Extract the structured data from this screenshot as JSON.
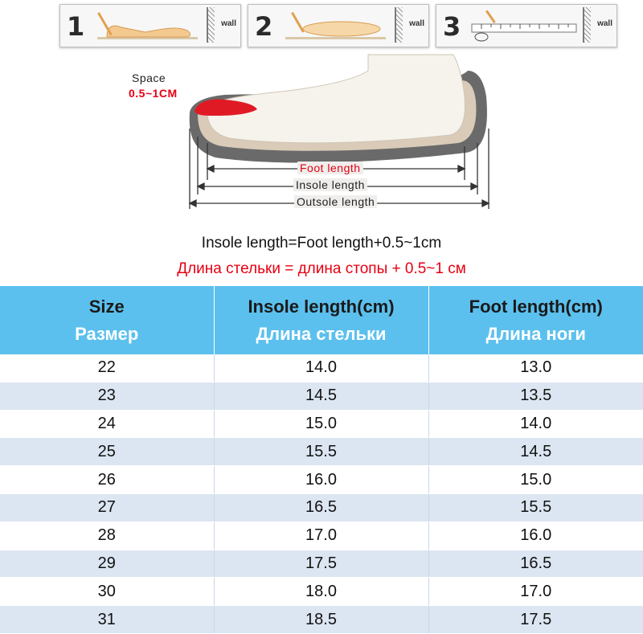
{
  "steps": [
    {
      "number": "1",
      "wall": "wall"
    },
    {
      "number": "2",
      "wall": "wall"
    },
    {
      "number": "3",
      "wall": "wall"
    }
  ],
  "diagram": {
    "space_label": "Space",
    "space_value": "0.5~1CM",
    "foot_length": "Foot length",
    "insole_length": "Insole length",
    "outsole_length": "Outsole length"
  },
  "formula": {
    "en": "Insole length=Foot length+0.5~1cm",
    "ru": "Длина стельки = длина стопы + 0.5~1 см"
  },
  "table": {
    "headers": [
      {
        "en": "Size",
        "ru": "Размер"
      },
      {
        "en": "Insole length(cm)",
        "ru": "Длина стельки"
      },
      {
        "en": "Foot length(cm)",
        "ru": "Длина ноги"
      }
    ],
    "rows": [
      [
        "22",
        "14.0",
        "13.0"
      ],
      [
        "23",
        "14.5",
        "13.5"
      ],
      [
        "24",
        "15.0",
        "14.0"
      ],
      [
        "25",
        "15.5",
        "14.5"
      ],
      [
        "26",
        "16.0",
        "15.0"
      ],
      [
        "27",
        "16.5",
        "15.5"
      ],
      [
        "28",
        "17.0",
        "16.0"
      ],
      [
        "29",
        "17.5",
        "16.5"
      ],
      [
        "30",
        "18.0",
        "17.0"
      ],
      [
        "31",
        "18.5",
        "17.5"
      ]
    ]
  },
  "colors": {
    "header_bg": "#5bc0ee",
    "stripe": "#dce6f2",
    "accent_red": "#e60012"
  }
}
